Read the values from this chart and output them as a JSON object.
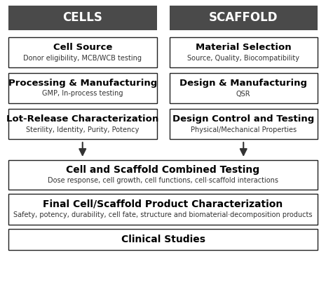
{
  "bg_color": "#ffffff",
  "header_bg": "#4a4a4a",
  "header_text_color": "#ffffff",
  "box_bg": "#ffffff",
  "box_edge": "#222222",
  "arrow_color": "#333333",
  "title_fontsize": 9.5,
  "subtitle_fontsize": 7.0,
  "header_fontsize": 12,
  "cells_header": "CELLS",
  "scaffold_header": "SCAFFOLD",
  "left_boxes": [
    {
      "title": "Cell Source",
      "subtitle": "Donor eligibility, MCB/WCB testing"
    },
    {
      "title": "Processing & Manufacturing",
      "subtitle": "GMP, In-process testing"
    },
    {
      "title": "Lot-Release Characterization",
      "subtitle": "Sterility, Identity, Purity, Potency"
    }
  ],
  "right_boxes": [
    {
      "title": "Material Selection",
      "subtitle": "Source, Quality, Biocompatibility"
    },
    {
      "title": "Design & Manufacturing",
      "subtitle": "QSR"
    },
    {
      "title": "Design Control and Testing",
      "subtitle": "Physical/Mechanical Properties"
    }
  ],
  "bottom_boxes": [
    {
      "title": "Cell and Scaffold Combined Testing",
      "subtitle": "Dose response, cell growth, cell functions, cell·scaffold interactions"
    },
    {
      "title": "Final Cell/Scaffold Product Characterization",
      "subtitle": "Safety, potency, durability, cell fate, structure and biomaterial·decomposition products"
    },
    {
      "title": "Clinical Studies",
      "subtitle": ""
    }
  ]
}
